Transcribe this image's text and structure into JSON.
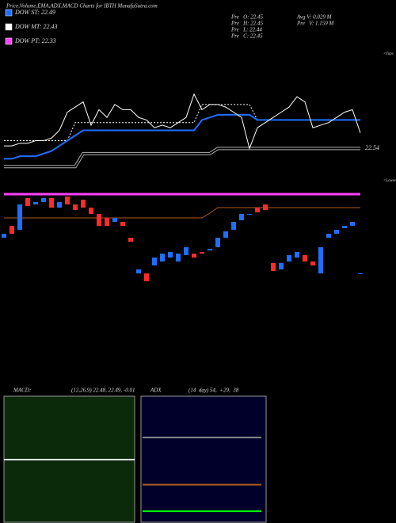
{
  "header": {
    "title": "Price,Volume,EMA,ADX,MACD Charts for IBTH MunafaSutra.com"
  },
  "legend": [
    {
      "label": "DOW ST: 22.49",
      "color": "#1e6fff"
    },
    {
      "label": "DOW MT: 22.43",
      "color": "#ffffff"
    },
    {
      "label": "DOW PT: 22.33",
      "color": "#ff40ff"
    }
  ],
  "stats": [
    "Pre   O: 22.45",
    "Pre   H: 22.45",
    "Pre   L: 22.44",
    "Pre   C: 22.45"
  ],
  "volume": [
    "Avg V: 0.029 M",
    "Pre   V: 1.159 M"
  ],
  "edge_labels": [
    "<Tops",
    "<Lower"
  ],
  "chart_data": [
    {
      "type": "line",
      "ylim": [
        22.44,
        22.93
      ],
      "last_label": {
        "value": 22.54,
        "label": "22.54"
      },
      "series": [
        {
          "color": "#b0b0b0",
          "double": true,
          "values": [
            22.47,
            22.47,
            22.47,
            22.47,
            22.47,
            22.47,
            22.47,
            22.47,
            22.47,
            22.47,
            22.52,
            22.52,
            22.52,
            22.52,
            22.52,
            22.52,
            22.52,
            22.52,
            22.52,
            22.52,
            22.52,
            22.52,
            22.52,
            22.52,
            22.52,
            22.52,
            22.52,
            22.54,
            22.54,
            22.54,
            22.54,
            22.54,
            22.54,
            22.54,
            22.54,
            22.54,
            22.54,
            22.54,
            22.54,
            22.54,
            22.54,
            22.54,
            22.54,
            22.54,
            22.54,
            22.54
          ]
        },
        {
          "color": "#ffffff",
          "dash": true,
          "values": [
            22.57,
            22.57,
            22.57,
            22.57,
            22.57,
            22.57,
            22.57,
            22.57,
            22.57,
            22.64,
            22.64,
            22.64,
            22.64,
            22.64,
            22.64,
            22.64,
            22.64,
            22.64,
            22.64,
            22.64,
            22.64,
            22.64,
            22.64,
            22.64,
            22.64,
            22.71,
            22.71,
            22.71,
            22.71,
            22.71,
            22.71,
            22.71,
            22.65,
            22.65,
            22.65,
            22.65,
            22.65,
            22.65,
            22.65,
            22.65,
            22.65,
            22.65,
            22.65,
            22.65,
            22.65,
            22.65
          ]
        },
        {
          "color": "#1e6fff",
          "width": 2,
          "values": [
            22.5,
            22.5,
            22.51,
            22.51,
            22.51,
            22.52,
            22.53,
            22.55,
            22.57,
            22.59,
            22.61,
            22.61,
            22.61,
            22.61,
            22.61,
            22.61,
            22.61,
            22.61,
            22.61,
            22.61,
            22.61,
            22.61,
            22.61,
            22.61,
            22.61,
            22.65,
            22.66,
            22.67,
            22.67,
            22.67,
            22.67,
            22.67,
            22.65,
            22.65,
            22.65,
            22.65,
            22.65,
            22.65,
            22.65,
            22.65,
            22.65,
            22.65,
            22.65,
            22.65,
            22.65,
            22.65
          ]
        },
        {
          "color": "#ffffff",
          "values": [
            22.55,
            22.55,
            22.56,
            22.56,
            22.57,
            22.57,
            22.58,
            22.61,
            22.68,
            22.7,
            22.72,
            22.63,
            22.69,
            22.66,
            22.71,
            22.69,
            22.69,
            22.66,
            22.65,
            22.62,
            22.63,
            22.62,
            22.64,
            22.66,
            22.75,
            22.69,
            22.71,
            22.71,
            22.7,
            22.68,
            22.66,
            22.54,
            22.62,
            22.64,
            22.66,
            22.68,
            22.7,
            22.74,
            22.72,
            22.62,
            22.63,
            22.64,
            22.66,
            22.68,
            22.69,
            22.6
          ]
        }
      ]
    },
    {
      "type": "candlestick",
      "ylim": [
        22.0,
        22.6
      ],
      "up_color": "#1e6fff",
      "down_color": "#ff2a2a",
      "open": [
        22.3,
        22.375,
        22.35,
        22.55,
        22.51,
        22.525,
        22.55,
        22.49,
        22.56,
        22.51,
        22.54,
        22.49,
        22.45,
        22.425,
        22.4,
        22.4,
        22.3,
        22.075,
        22.075,
        22.125,
        22.15,
        22.175,
        22.15,
        22.19,
        22.2,
        22.21,
        22.22,
        22.24,
        22.3,
        22.35,
        22.41,
        22.45,
        22.49,
        22.51,
        22.14,
        22.1,
        22.15,
        22.175,
        22.19,
        22.15,
        22.075,
        22.3,
        22.325,
        22.36,
        22.375,
        22.075
      ],
      "close": [
        22.325,
        22.325,
        22.51,
        22.5,
        22.525,
        22.55,
        22.49,
        22.525,
        22.51,
        22.475,
        22.49,
        22.45,
        22.375,
        22.375,
        22.425,
        22.375,
        22.275,
        22.1,
        22.025,
        22.175,
        22.2,
        22.21,
        22.2,
        22.24,
        22.175,
        22.2,
        22.23,
        22.3,
        22.34,
        22.4,
        22.45,
        22.45,
        22.46,
        22.475,
        22.09,
        22.14,
        22.19,
        22.21,
        22.15,
        22.125,
        22.24,
        22.325,
        22.35,
        22.375,
        22.4,
        22.075
      ],
      "series": [
        {
          "color": "#ff40ff",
          "width": 3,
          "values": [
            22.575,
            22.575,
            22.575,
            22.575,
            22.575,
            22.575,
            22.575,
            22.575,
            22.575,
            22.575,
            22.575,
            22.575,
            22.575,
            22.575,
            22.575,
            22.575,
            22.575,
            22.575,
            22.575,
            22.575,
            22.575,
            22.575,
            22.575,
            22.575,
            22.575,
            22.575,
            22.575,
            22.575,
            22.575,
            22.575,
            22.575,
            22.575,
            22.575,
            22.575,
            22.575,
            22.575,
            22.575,
            22.575,
            22.575,
            22.575,
            22.575,
            22.575,
            22.575,
            22.575,
            22.575,
            22.575
          ]
        },
        {
          "color": "#b05a1e",
          "values": [
            22.425,
            22.425,
            22.425,
            22.425,
            22.425,
            22.425,
            22.425,
            22.425,
            22.425,
            22.425,
            22.425,
            22.425,
            22.425,
            22.425,
            22.425,
            22.425,
            22.425,
            22.425,
            22.425,
            22.425,
            22.425,
            22.425,
            22.425,
            22.425,
            22.425,
            22.425,
            22.455,
            22.49,
            22.49,
            22.49,
            22.49,
            22.49,
            22.49,
            22.49,
            22.49,
            22.49,
            22.49,
            22.49,
            22.49,
            22.49,
            22.49,
            22.49,
            22.49,
            22.49,
            22.49,
            22.49
          ]
        }
      ]
    },
    {
      "type": "panel",
      "name": "MACD:",
      "params": "(12,26,9) 22.48, 22.49, -0.01",
      "background": "#0a2a0a"
    },
    {
      "type": "panel",
      "name": "ADX",
      "params": "(14  day) 54,  +29,  38",
      "background": "#00002a",
      "ylim": [
        25,
        68
      ],
      "series": [
        {
          "color": "#888888",
          "values": [
            54,
            54
          ]
        },
        {
          "color": "#b05a1e",
          "values": [
            38,
            38
          ]
        },
        {
          "color": "#00ff00",
          "values": [
            29,
            29
          ]
        }
      ]
    }
  ]
}
